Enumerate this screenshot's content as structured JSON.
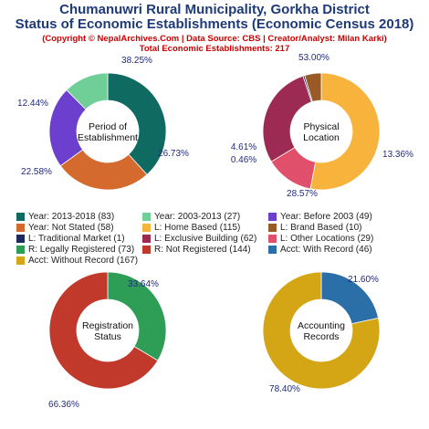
{
  "header": {
    "title_line1": "Chumanuwri Rural Municipality, Gorkha District",
    "title_line2": "Status of Economic Establishments (Economic Census 2018)",
    "copyright": "(Copyright © NepalArchives.Com | Data Source: CBS | Creator/Analyst: Milan Karki)",
    "total": "Total Economic Establishments: 217"
  },
  "chart_data": [
    {
      "type": "pie",
      "center_label": [
        "Period of",
        "Establishment"
      ],
      "slices": [
        {
          "label": "Year: 2013-2018",
          "value": 83,
          "percent": "38.25%",
          "color": "#0f6a61"
        },
        {
          "label": "Year: Before 2003",
          "value": 49,
          "percent": "22.58%",
          "color": "#6c3fcf"
        },
        {
          "label": "Year: 2003-2013",
          "value": 27,
          "percent": "12.44%",
          "color": "#6fcf97"
        },
        {
          "label": "Year: Not Stated",
          "value": 58,
          "percent": "26.73%",
          "color": "#d46a2e"
        }
      ],
      "order": [
        0,
        3,
        1,
        2
      ]
    },
    {
      "type": "pie",
      "center_label": [
        "Physical",
        "Location"
      ],
      "slices": [
        {
          "label": "L: Home Based",
          "value": 115,
          "percent": "53.00%",
          "color": "#f7b33b"
        },
        {
          "label": "L: Other Locations",
          "value": 29,
          "percent": "13.36%",
          "color": "#e0506a"
        },
        {
          "label": "L: Exclusive Building",
          "value": 62,
          "percent": "28.57%",
          "color": "#9c2a52"
        },
        {
          "label": "L: Traditional Market",
          "value": 1,
          "percent": "0.46%",
          "color": "#1c2a5e"
        },
        {
          "label": "L: Brand Based",
          "value": 10,
          "percent": "4.61%",
          "color": "#9a5a26"
        }
      ],
      "order": [
        0,
        1,
        2,
        3,
        4
      ]
    },
    {
      "type": "pie",
      "center_label": [
        "Registration",
        "Status"
      ],
      "slices": [
        {
          "label": "R: Legally Registered",
          "value": 73,
          "percent": "33.64%",
          "color": "#2e9e57"
        },
        {
          "label": "R: Not Registered",
          "value": 144,
          "percent": "66.36%",
          "color": "#c0392b"
        }
      ],
      "order": [
        0,
        1
      ]
    },
    {
      "type": "pie",
      "center_label": [
        "Accounting",
        "Records"
      ],
      "slices": [
        {
          "label": "Acct: With Record",
          "value": 46,
          "percent": "21.60%",
          "color": "#2a6fa8"
        },
        {
          "label": "Acct: Without Record",
          "value": 167,
          "percent": "78.40%",
          "color": "#d4a514"
        }
      ],
      "order": [
        0,
        1
      ]
    }
  ],
  "legend": [
    {
      "text": "Year: 2013-2018 (83)",
      "color": "#0f6a61"
    },
    {
      "text": "Year: 2003-2013 (27)",
      "color": "#6fcf97"
    },
    {
      "text": "Year: Before 2003 (49)",
      "color": "#6c3fcf"
    },
    {
      "text": "Year: Not Stated (58)",
      "color": "#d46a2e"
    },
    {
      "text": "L: Home Based (115)",
      "color": "#f7b33b"
    },
    {
      "text": "L: Brand Based (10)",
      "color": "#9a5a26"
    },
    {
      "text": "L: Traditional Market (1)",
      "color": "#1c2a5e"
    },
    {
      "text": "L: Exclusive Building (62)",
      "color": "#9c2a52"
    },
    {
      "text": "L: Other Locations (29)",
      "color": "#e0506a"
    },
    {
      "text": "R: Legally Registered (73)",
      "color": "#2e9e57"
    },
    {
      "text": "R: Not Registered (144)",
      "color": "#c0392b"
    },
    {
      "text": "Acct: With Record (46)",
      "color": "#2a6fa8"
    },
    {
      "text": "Acct: Without Record (167)",
      "color": "#d4a514"
    }
  ]
}
